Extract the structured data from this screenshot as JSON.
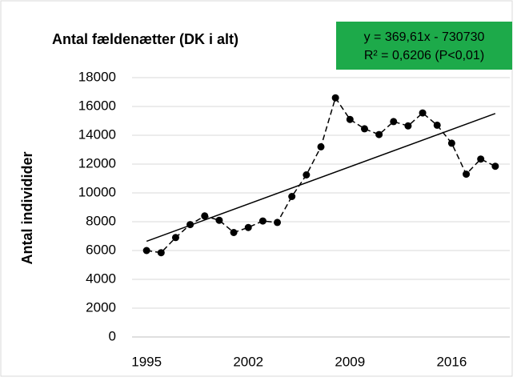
{
  "chart_data": {
    "type": "line",
    "title": "Antal fældenætter (DK i alt)",
    "y_label": "Antal individider",
    "x": [
      1995,
      1996,
      1997,
      1998,
      1999,
      2000,
      2001,
      2002,
      2003,
      2004,
      2005,
      2006,
      2007,
      2008,
      2009,
      2010,
      2011,
      2012,
      2013,
      2014,
      2015,
      2016,
      2017,
      2018,
      2019
    ],
    "series": [
      {
        "color": "#000000",
        "values": [
          6000,
          5850,
          6900,
          7800,
          8400,
          8100,
          7250,
          7600,
          8050,
          7950,
          9750,
          11250,
          13200,
          16600,
          15100,
          14450,
          14050,
          14950,
          14650,
          15550,
          14700,
          13450,
          11300,
          12350,
          11850
        ]
      }
    ],
    "trendline": {
      "slope": 369.61,
      "intercept": -730730,
      "label": "y = 369,61x - 730730",
      "r2_label": "R² = 0,6206 (P<0,01)",
      "box_color": "#1daa4a"
    },
    "xlim": [
      1994,
      2020
    ],
    "xticks": [
      1995,
      2002,
      2009,
      2016
    ],
    "ylim": [
      0,
      18000
    ],
    "yticks": [
      0,
      2000,
      4000,
      6000,
      8000,
      10000,
      12000,
      14000,
      16000,
      18000
    ],
    "grid": true
  }
}
